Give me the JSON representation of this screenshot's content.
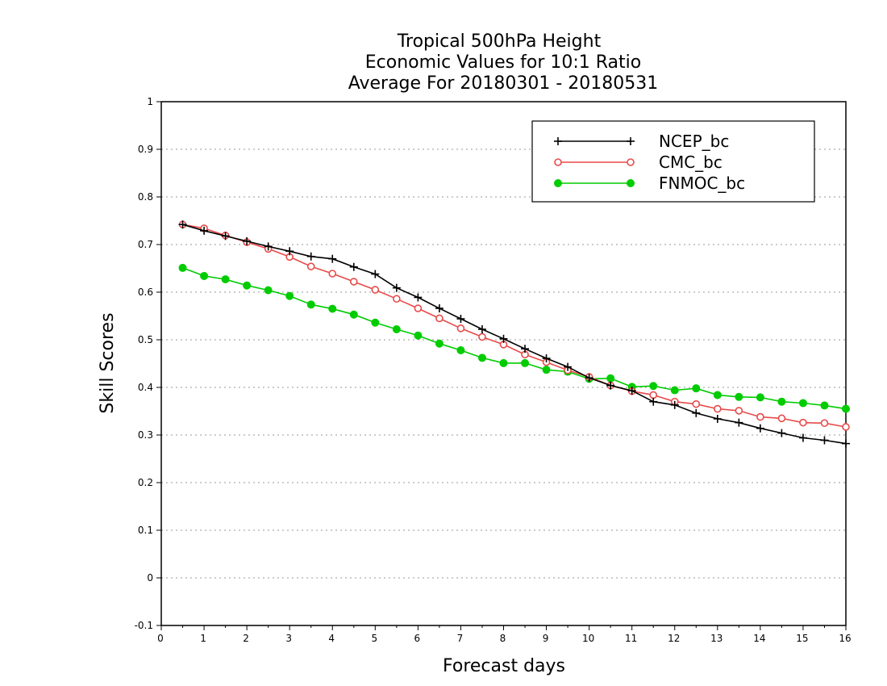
{
  "chart_data": {
    "type": "line",
    "title": [
      "Tropical 500hPa Height",
      "Economic Values for 10:1 Ratio",
      "Average For 20180301 - 20180531"
    ],
    "xlabel": "Forecast days",
    "ylabel": "Skill Scores",
    "xlim": [
      0,
      16
    ],
    "ylim": [
      -0.1,
      1
    ],
    "xticks": [
      "0",
      "1",
      "2",
      "3",
      "4",
      "5",
      "6",
      "7",
      "8",
      "9",
      "10",
      "11",
      "12",
      "13",
      "14",
      "15",
      "16"
    ],
    "yticks": [
      "-0.1",
      "0",
      "0.1",
      "0.2",
      "0.3",
      "0.4",
      "0.5",
      "0.6",
      "0.7",
      "0.8",
      "0.9",
      "1"
    ],
    "grid": "horizontal dotted",
    "legend_position": "top-right",
    "x": [
      0.5,
      1,
      1.5,
      2,
      2.5,
      3,
      3.5,
      4,
      4.5,
      5,
      5.5,
      6,
      6.5,
      7,
      7.5,
      8,
      8.5,
      9,
      9.5,
      10,
      10.5,
      11,
      11.5,
      12,
      12.5,
      13,
      13.5,
      14,
      14.5,
      15,
      15.5,
      16
    ],
    "series": [
      {
        "name": "NCEP_bc",
        "color": "#000000",
        "marker": "plus",
        "values": [
          0.742,
          0.729,
          0.718,
          0.707,
          0.696,
          0.686,
          0.675,
          0.67,
          0.653,
          0.638,
          0.609,
          0.589,
          0.566,
          0.544,
          0.522,
          0.502,
          0.481,
          0.461,
          0.443,
          0.42,
          0.404,
          0.393,
          0.37,
          0.363,
          0.346,
          0.334,
          0.326,
          0.314,
          0.304,
          0.294,
          0.289,
          0.282
        ]
      },
      {
        "name": "CMC_bc",
        "color": "#e84a4a",
        "marker": "open-circle",
        "values": [
          0.742,
          0.734,
          0.719,
          0.705,
          0.691,
          0.674,
          0.654,
          0.639,
          0.622,
          0.605,
          0.586,
          0.566,
          0.545,
          0.524,
          0.506,
          0.49,
          0.469,
          0.453,
          0.436,
          0.422,
          0.404,
          0.392,
          0.384,
          0.37,
          0.365,
          0.355,
          0.351,
          0.338,
          0.335,
          0.326,
          0.325,
          0.317
        ]
      },
      {
        "name": "FNMOC_bc",
        "color": "#00cc00",
        "marker": "filled-circle",
        "values": [
          0.651,
          0.634,
          0.627,
          0.614,
          0.604,
          0.592,
          0.574,
          0.565,
          0.553,
          0.536,
          0.522,
          0.509,
          0.492,
          0.478,
          0.462,
          0.451,
          0.451,
          0.437,
          0.433,
          0.418,
          0.419,
          0.401,
          0.403,
          0.394,
          0.398,
          0.384,
          0.38,
          0.379,
          0.37,
          0.367,
          0.362,
          0.355
        ]
      }
    ]
  }
}
